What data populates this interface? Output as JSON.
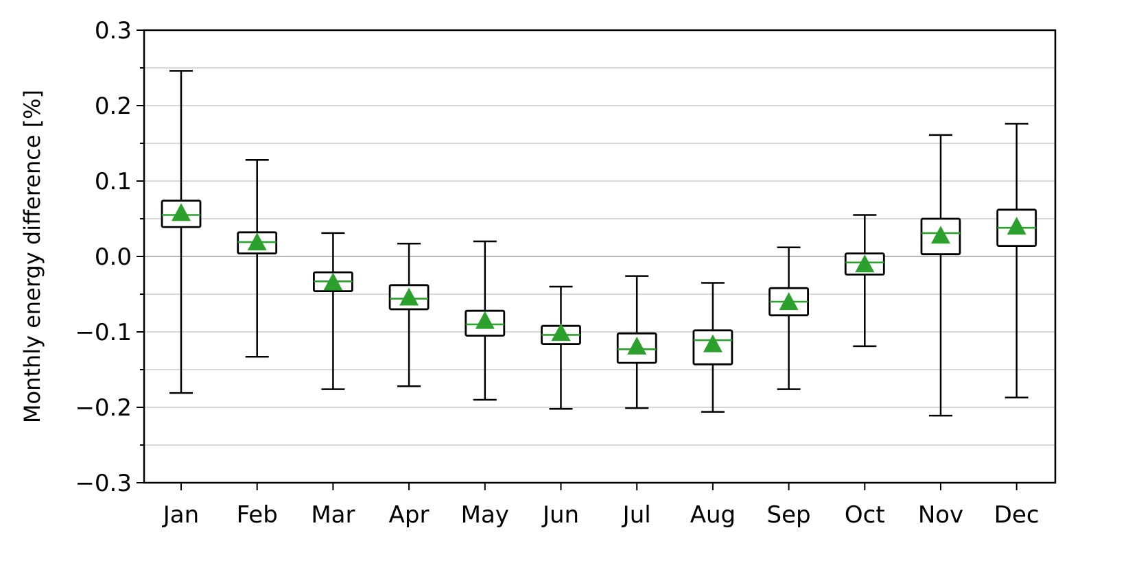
{
  "chart_data": {
    "type": "box",
    "categories": [
      "Jan",
      "Feb",
      "Mar",
      "Apr",
      "May",
      "Jun",
      "Jul",
      "Aug",
      "Sep",
      "Oct",
      "Nov",
      "Dec"
    ],
    "ylabel": "Monthly energy difference [%]",
    "xlabel": "",
    "ylim": [
      -0.3,
      0.3
    ],
    "yticks": [
      -0.3,
      -0.2,
      -0.1,
      0.0,
      0.1,
      0.2,
      0.3
    ],
    "ytick_labels": [
      "−0.3",
      "−0.2",
      "−0.1",
      "0.0",
      "0.1",
      "0.2",
      "0.3"
    ],
    "grid": "horizontal",
    "zero_line": true,
    "series": [
      {
        "category": "Jan",
        "whisker_low": -0.181,
        "q1": 0.039,
        "median": 0.055,
        "q3": 0.074,
        "whisker_high": 0.246,
        "mean": 0.056
      },
      {
        "category": "Feb",
        "whisker_low": -0.133,
        "q1": 0.004,
        "median": 0.019,
        "q3": 0.032,
        "whisker_high": 0.128,
        "mean": 0.017
      },
      {
        "category": "Mar",
        "whisker_low": -0.176,
        "q1": -0.046,
        "median": -0.033,
        "q3": -0.021,
        "whisker_high": 0.031,
        "mean": -0.036
      },
      {
        "category": "Apr",
        "whisker_low": -0.172,
        "q1": -0.07,
        "median": -0.056,
        "q3": -0.038,
        "whisker_high": 0.017,
        "mean": -0.056
      },
      {
        "category": "May",
        "whisker_low": -0.19,
        "q1": -0.105,
        "median": -0.09,
        "q3": -0.072,
        "whisker_high": 0.02,
        "mean": -0.087
      },
      {
        "category": "Jun",
        "whisker_low": -0.202,
        "q1": -0.116,
        "median": -0.104,
        "q3": -0.092,
        "whisker_high": -0.04,
        "mean": -0.103
      },
      {
        "category": "Jul",
        "whisker_low": -0.201,
        "q1": -0.141,
        "median": -0.123,
        "q3": -0.102,
        "whisker_high": -0.026,
        "mean": -0.121
      },
      {
        "category": "Aug",
        "whisker_low": -0.206,
        "q1": -0.143,
        "median": -0.111,
        "q3": -0.098,
        "whisker_high": -0.035,
        "mean": -0.118
      },
      {
        "category": "Sep",
        "whisker_low": -0.176,
        "q1": -0.078,
        "median": -0.06,
        "q3": -0.042,
        "whisker_high": 0.012,
        "mean": -0.062
      },
      {
        "category": "Oct",
        "whisker_low": -0.119,
        "q1": -0.024,
        "median": -0.008,
        "q3": 0.004,
        "whisker_high": 0.055,
        "mean": -0.012
      },
      {
        "category": "Nov",
        "whisker_low": -0.211,
        "q1": 0.003,
        "median": 0.031,
        "q3": 0.05,
        "whisker_high": 0.161,
        "mean": 0.026
      },
      {
        "category": "Dec",
        "whisker_low": -0.187,
        "q1": 0.014,
        "median": 0.038,
        "q3": 0.062,
        "whisker_high": 0.176,
        "mean": 0.038
      }
    ],
    "colors": {
      "box": "#000000",
      "median": "#2ca02c",
      "mean_marker": "#2ca02c",
      "grid": "#b0b0b0",
      "zero_line": "#a0a0a0"
    }
  }
}
